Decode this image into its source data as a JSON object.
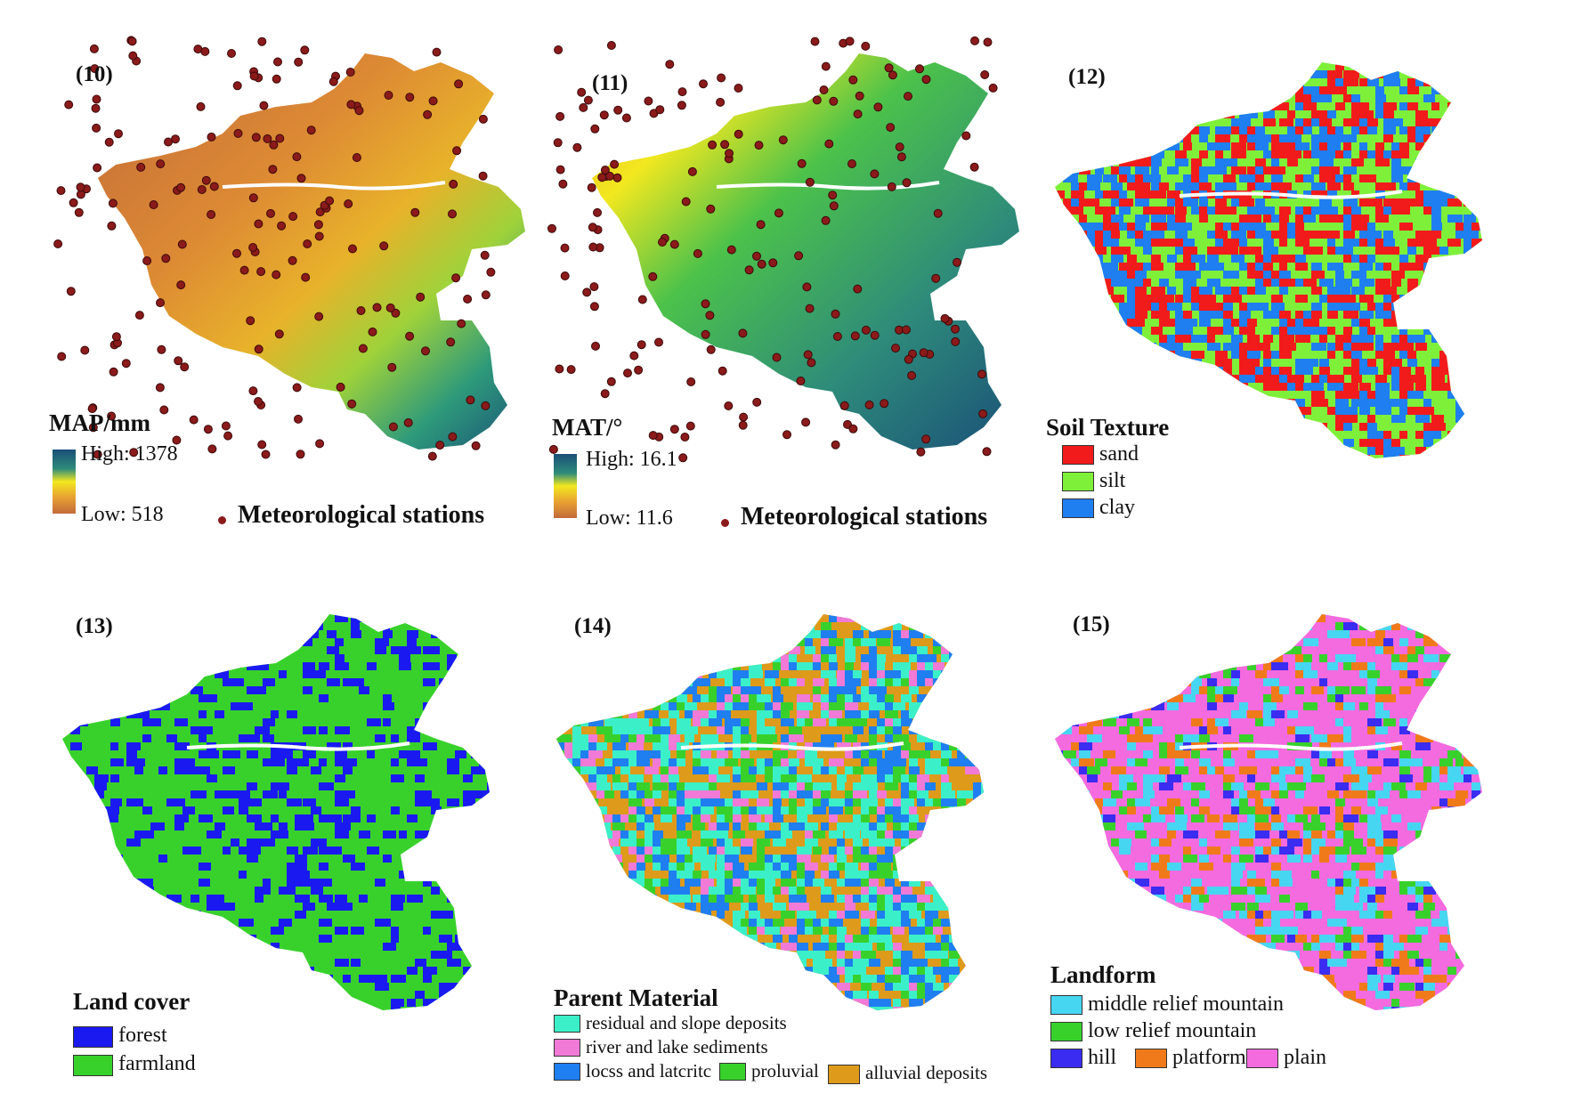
{
  "panels": [
    {
      "id": "10",
      "label": "(10)",
      "legend_title": "MAP/mm",
      "high": "High: 1378",
      "low": "Low: 518",
      "stations_label": "Meteorological stations",
      "ramp": [
        "#1a4f78",
        "#2e8b7a",
        "#4cc24a",
        "#f2e81f",
        "#e8a032",
        "#c26a3a"
      ]
    },
    {
      "id": "11",
      "label": "(11)",
      "legend_title": "MAT/°",
      "high": "High: 16.1",
      "low": "Low: 11.6",
      "stations_label": "Meteorological stations",
      "ramp": [
        "#1a4f78",
        "#2e8b7a",
        "#4cc24a",
        "#f2e81f",
        "#e8a032",
        "#c26a3a"
      ]
    },
    {
      "id": "12",
      "label": "(12)",
      "legend_title": "Soil Texture",
      "classes": [
        {
          "name": "sand",
          "color": "#f21b1b"
        },
        {
          "name": "silt",
          "color": "#7ef03a"
        },
        {
          "name": "clay",
          "color": "#1f7ef0"
        }
      ]
    },
    {
      "id": "13",
      "label": "(13)",
      "legend_title": "Land cover",
      "classes": [
        {
          "name": "forest",
          "color": "#1a1af0"
        },
        {
          "name": "farmland",
          "color": "#38d12c"
        }
      ]
    },
    {
      "id": "14",
      "label": "(14)",
      "legend_title": "Parent Material",
      "classes": [
        {
          "name": "residual and slope deposits",
          "color": "#3bf0c8"
        },
        {
          "name": "river and lake sediments",
          "color": "#f07ad6"
        },
        {
          "name": "locss and latcritc",
          "color": "#1f7ef0"
        },
        {
          "name": "proluvial",
          "color": "#38d12c"
        },
        {
          "name": "alluvial deposits",
          "color": "#de9a1a"
        }
      ]
    },
    {
      "id": "15",
      "label": "(15)",
      "legend_title": "Landform",
      "classes": [
        {
          "name": "middle relief mountain",
          "color": "#46d6f2"
        },
        {
          "name": "low relief mountain",
          "color": "#38d12c"
        },
        {
          "name": "hill",
          "color": "#3a2cf0"
        },
        {
          "name": "platform",
          "color": "#f07a1a"
        },
        {
          "name": "plain",
          "color": "#f46adf"
        }
      ]
    }
  ],
  "colors": {
    "station": "#8b1a1a",
    "river": "#ffffff"
  }
}
